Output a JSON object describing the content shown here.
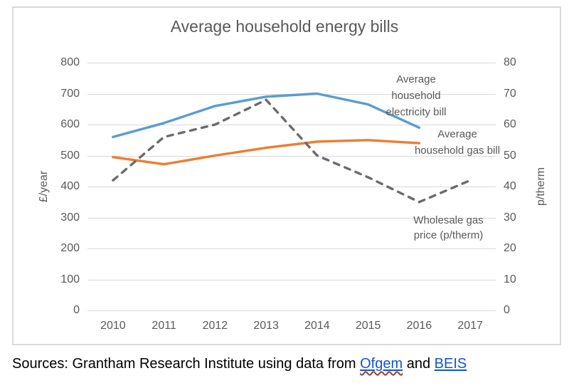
{
  "chart_data": {
    "type": "line",
    "title": "Average household energy bills",
    "x": [
      "2010",
      "2011",
      "2012",
      "2013",
      "2014",
      "2015",
      "2016",
      "2017"
    ],
    "left_axis": {
      "label": "£/year",
      "min": 0,
      "max": 800,
      "step": 100,
      "ticks": [
        "800",
        "700",
        "600",
        "500",
        "400",
        "300",
        "200",
        "100",
        "0"
      ]
    },
    "right_axis": {
      "label": "p/therm",
      "min": 0,
      "max": 80,
      "step": 10,
      "ticks": [
        "80",
        "70",
        "60",
        "50",
        "40",
        "30",
        "20",
        "10",
        "0"
      ]
    },
    "grid": true,
    "legend": "inline-labels",
    "series": [
      {
        "id": "electricity-bill-line",
        "name": "Average household electricity bill",
        "axis": "left",
        "color": "#5b9bd5",
        "style": "solid",
        "years": [
          "2010",
          "2011",
          "2012",
          "2013",
          "2014",
          "2015",
          "2016"
        ],
        "values": [
          560,
          605,
          660,
          690,
          700,
          665,
          590
        ]
      },
      {
        "id": "gas-bill-line",
        "name": "Average household gas bill",
        "axis": "left",
        "color": "#ed7d31",
        "style": "solid",
        "years": [
          "2010",
          "2011",
          "2012",
          "2013",
          "2014",
          "2015",
          "2016"
        ],
        "values": [
          495,
          472,
          500,
          525,
          545,
          550,
          540
        ]
      },
      {
        "id": "wholesale-gas-price-line",
        "name": "Wholesale gas price (p/therm)",
        "axis": "right",
        "color": "#6b6b6b",
        "style": "dashed",
        "years": [
          "2010",
          "2011",
          "2012",
          "2013",
          "2014",
          "2015",
          "2016",
          "2017"
        ],
        "values": [
          42,
          56,
          60,
          68,
          50,
          43,
          35,
          42
        ]
      }
    ]
  },
  "labels": {
    "electricity": {
      "line1": "Average",
      "line2": "household",
      "line3": "electricity bill"
    },
    "gas": {
      "line1": "Average",
      "line2": "household gas bill"
    },
    "wholesale": {
      "line1": "Wholesale gas",
      "line2": "price (p/therm)"
    }
  },
  "source_line": {
    "prefix": "Sources: Grantham Research Institute using data from ",
    "link1": "Ofgem",
    "middle": " and ",
    "link2": "BEIS"
  },
  "colors": {
    "link": "#1155cc",
    "chart_text": "#595959",
    "gridline": "#d9d9d9"
  }
}
